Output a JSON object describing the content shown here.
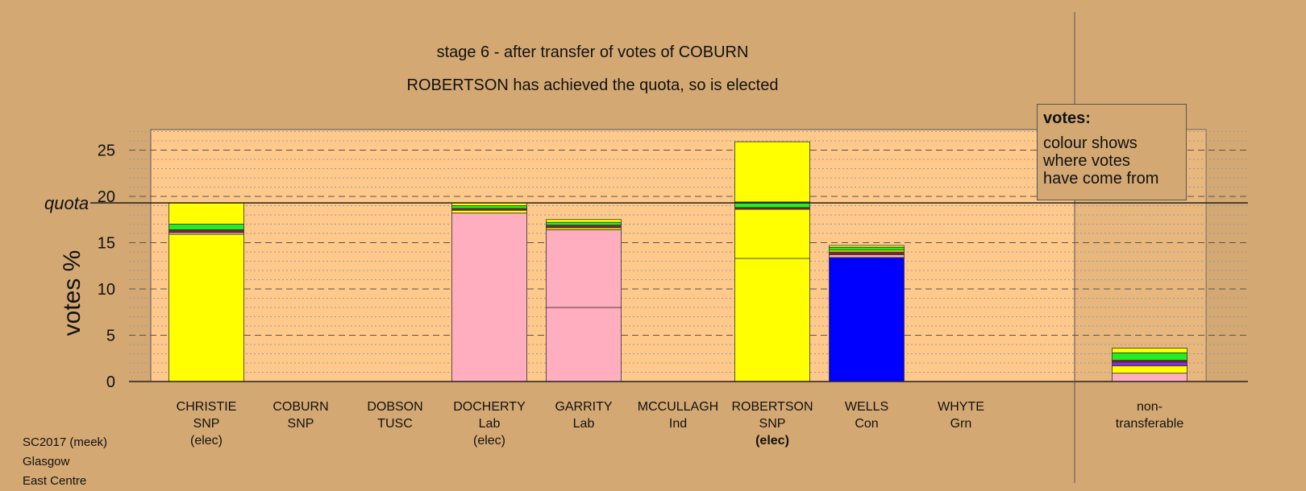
{
  "titles": {
    "line1": "stage 6 - after transfer of votes of COBURN",
    "line2": "ROBERTSON has achieved the quota, so is elected"
  },
  "legend": {
    "title": "votes:",
    "lines": [
      "colour shows",
      "where votes",
      "have come from"
    ]
  },
  "footer": [
    "SC2017 (meek)",
    "Glasgow",
    "East Centre"
  ],
  "colors": {
    "background": "#d4a873",
    "plot_area": "#ffc98c",
    "SNP": "#ffff00",
    "Lab": "#ffaec0",
    "Con": "#0000ff",
    "Grn": "#22ee22",
    "Ind": "#7a2a2a",
    "TUSC": "#8a2be2"
  },
  "chart_data": {
    "type": "bar",
    "stacked": true,
    "title": "stage 6 - after transfer of votes of COBURN",
    "subtitle": "ROBERTSON has achieved the quota, so is elected",
    "ylabel": "votes %",
    "ylim": [
      0,
      27
    ],
    "yticks": [
      0,
      5,
      10,
      15,
      20,
      25
    ],
    "quota": 19.3,
    "quota_label": "quota",
    "grid": true,
    "legend_placement": "top-right",
    "candidates": [
      {
        "name": "CHRISTIE",
        "party": "SNP",
        "note": "(elec)",
        "bold_note": false,
        "segments": [
          {
            "from": "SNP",
            "value": 15.9
          },
          {
            "from": "Lab",
            "value": 0.2
          },
          {
            "from": "Ind",
            "value": 0.3
          },
          {
            "from": "Grn",
            "value": 0.6
          },
          {
            "from": "SNP",
            "value": 2.3
          }
        ]
      },
      {
        "name": "COBURN",
        "party": "SNP",
        "note": "",
        "bold_note": false,
        "segments": []
      },
      {
        "name": "DOBSON",
        "party": "TUSC",
        "note": "",
        "bold_note": false,
        "segments": []
      },
      {
        "name": "DOCHERTY",
        "party": "Lab",
        "note": "(elec)",
        "bold_note": false,
        "segments": [
          {
            "from": "Lab",
            "value": 18.2
          },
          {
            "from": "SNP",
            "value": 0.3
          },
          {
            "from": "Ind",
            "value": 0.2
          },
          {
            "from": "Grn",
            "value": 0.3
          },
          {
            "from": "SNP",
            "value": 0.3
          }
        ]
      },
      {
        "name": "GARRITY",
        "party": "Lab",
        "note": "",
        "bold_note": false,
        "segments": [
          {
            "from": "Lab",
            "value": 8.0
          },
          {
            "from": "Lab",
            "value": 8.4
          },
          {
            "from": "SNP",
            "value": 0.2
          },
          {
            "from": "Ind",
            "value": 0.3
          },
          {
            "from": "Grn",
            "value": 0.3
          },
          {
            "from": "SNP",
            "value": 0.3
          }
        ]
      },
      {
        "name": "MCCULLAGH",
        "party": "Ind",
        "note": "",
        "bold_note": false,
        "segments": []
      },
      {
        "name": "ROBERTSON",
        "party": "SNP",
        "note": "(elec)",
        "bold_note": true,
        "segments": [
          {
            "from": "SNP",
            "value": 13.3
          },
          {
            "from": "SNP",
            "value": 5.3
          },
          {
            "from": "Ind",
            "value": 0.2
          },
          {
            "from": "Grn",
            "value": 0.6
          },
          {
            "from": "SNP",
            "value": 6.5
          }
        ]
      },
      {
        "name": "WELLS",
        "party": "Con",
        "note": "",
        "bold_note": false,
        "segments": [
          {
            "from": "Con",
            "value": 13.4
          },
          {
            "from": "Lab",
            "value": 0.3
          },
          {
            "from": "Ind",
            "value": 0.3
          },
          {
            "from": "SNP",
            "value": 0.2
          },
          {
            "from": "Grn",
            "value": 0.3
          },
          {
            "from": "SNP",
            "value": 0.2
          }
        ]
      },
      {
        "name": "WHYTE",
        "party": "Grn",
        "note": "",
        "bold_note": false,
        "segments": []
      }
    ],
    "nontransferable": {
      "label_line1": "non-",
      "label_line2": "transferable",
      "segments": [
        {
          "from": "Lab",
          "value": 0.9
        },
        {
          "from": "SNP",
          "value": 0.8
        },
        {
          "from": "TUSC",
          "value": 0.4
        },
        {
          "from": "Ind",
          "value": 0.2
        },
        {
          "from": "Grn",
          "value": 0.8
        },
        {
          "from": "SNP",
          "value": 0.5
        }
      ]
    }
  }
}
